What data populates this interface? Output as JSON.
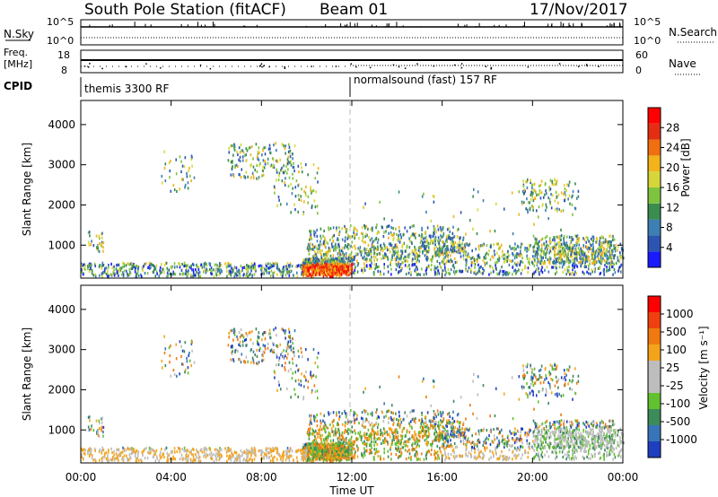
{
  "header": {
    "title": "South Pole Station (fitACF)",
    "beam": "Beam 01",
    "date": "17/Nov/2017"
  },
  "strips": {
    "nsky": {
      "label": "N.Sky",
      "ticks": [
        "10^5",
        "10^0"
      ],
      "right_label": "N.Search",
      "right_ticks": [
        "10^5",
        "10^0"
      ]
    },
    "freq": {
      "label_line1": "Freq.",
      "label_line2": "[MHz]",
      "ticks": [
        "18",
        "8"
      ],
      "right_label": "Nave",
      "right_ticks": [
        "60",
        "0"
      ]
    },
    "cpid": {
      "label": "CPID",
      "segments": [
        "themis 3300 RF",
        "normalsound (fast) 157 RF"
      ]
    }
  },
  "panels": {
    "power": {
      "ylabel": "Slant Range [km]",
      "cbar_label": "Power [dB]",
      "cbar_ticks": [
        "4",
        "8",
        "12",
        "16",
        "20",
        "24",
        "28"
      ],
      "colors": [
        "#1a1aff",
        "#2b55b0",
        "#3d7fb3",
        "#3a8c4f",
        "#7fc43f",
        "#d6d63a",
        "#f2b31b",
        "#f06f10",
        "#e42d12",
        "#ff0000"
      ]
    },
    "velocity": {
      "ylabel": "Slant Range [km]",
      "cbar_label": "Velocity [m s⁻¹]",
      "cbar_ticks": [
        "1000",
        "500",
        "100",
        "25",
        "-25",
        "-100",
        "-500",
        "-1000"
      ],
      "colors": [
        "#1e3fbf",
        "#3874b8",
        "#3d8a5a",
        "#62c12f",
        "#bdbdbd",
        "#bdbdbd",
        "#f4a41a",
        "#f07a10",
        "#f04010",
        "#ff0000"
      ]
    }
  },
  "x_axis": {
    "label": "Time UT",
    "ticks": [
      "00:00",
      "04:00",
      "08:00",
      "12:00",
      "16:00",
      "20:00",
      "00:00"
    ]
  },
  "y_axis": {
    "ticks": [
      "1000",
      "2000",
      "3000",
      "4000"
    ]
  },
  "chart_data": {
    "type": "heatmap",
    "title": "South Pole Station (fitACF)",
    "subtitle": "Beam 01 17/Nov/2017",
    "xlabel": "Time UT",
    "ylabel": "Slant Range [km]",
    "x_range_hours": [
      0,
      24
    ],
    "y_range_km": [
      180,
      4600
    ],
    "series": [
      {
        "name": "Power [dB]",
        "range": [
          0,
          32
        ]
      },
      {
        "name": "Velocity [m s⁻¹]",
        "range": [
          -1000,
          1000
        ]
      }
    ],
    "mode_change_hour": 12,
    "grid": false,
    "legend": "right colorbar"
  }
}
